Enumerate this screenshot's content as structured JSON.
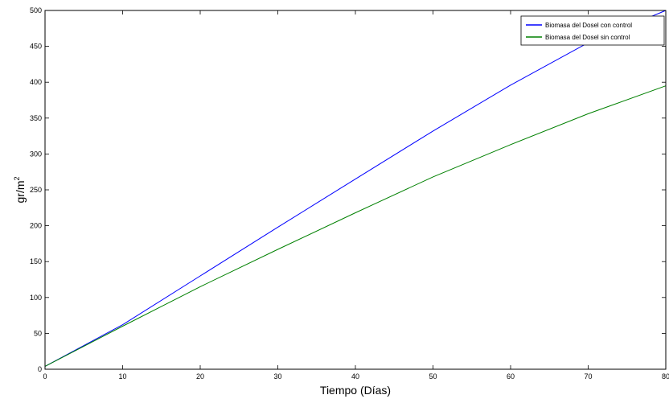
{
  "chart_data": {
    "type": "line",
    "xlabel": "Tiempo (Días)",
    "ylabel": "gr/m",
    "ylabel_sup": "2",
    "xlim": [
      0,
      80
    ],
    "ylim": [
      0,
      500
    ],
    "xticks": [
      0,
      10,
      20,
      30,
      40,
      50,
      60,
      70,
      80
    ],
    "yticks": [
      0,
      50,
      100,
      150,
      200,
      250,
      300,
      350,
      400,
      450,
      500
    ],
    "grid": false,
    "legend_position": "top-right",
    "series": [
      {
        "name": "Biomasa del Dosel con control",
        "color": "#0000ff",
        "x": [
          0,
          10,
          20,
          30,
          40,
          50,
          60,
          70,
          80
        ],
        "y": [
          4,
          62,
          130,
          198,
          265,
          332,
          396,
          455,
          500
        ]
      },
      {
        "name": "Biomasa del Dosel sin control",
        "color": "#008000",
        "x": [
          0,
          10,
          20,
          30,
          40,
          50,
          60,
          70,
          80
        ],
        "y": [
          4,
          60,
          115,
          167,
          218,
          268,
          313,
          356,
          395
        ]
      }
    ]
  }
}
